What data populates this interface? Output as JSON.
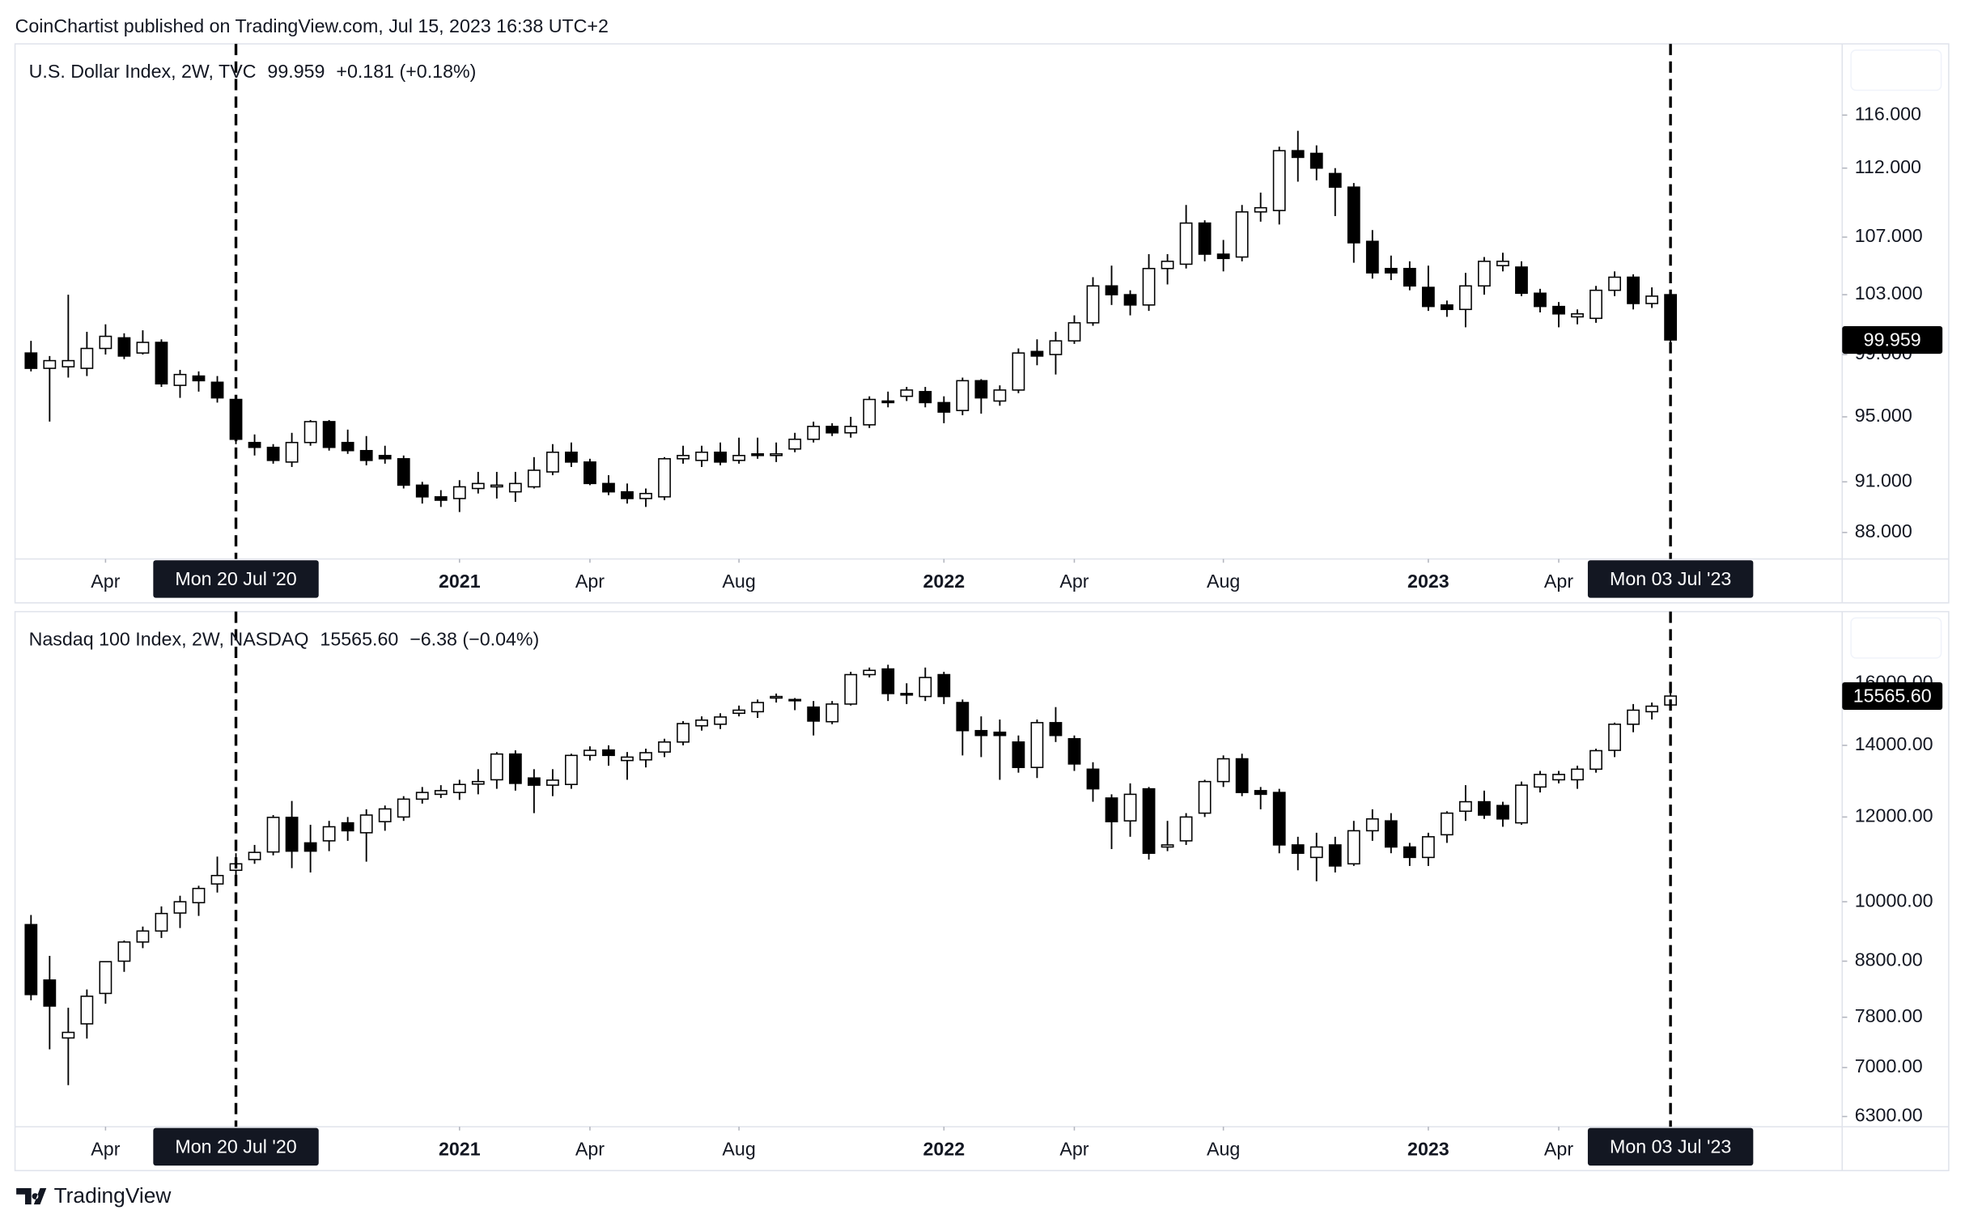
{
  "header": "CoinChartist published on TradingView.com, Jul 15, 2023 16:38 UTC+2",
  "footer": {
    "brand": "TradingView"
  },
  "chart_data": [
    {
      "type": "candlestick",
      "title": "U.S. Dollar Index, 2W, TVC",
      "last": 99.959,
      "last_label": "99.959",
      "change": "+0.181 (+0.18%)",
      "log": true,
      "x": [
        "2020-02-17",
        "2020-03-02",
        "2020-03-16",
        "2020-03-30",
        "2020-04-13",
        "2020-04-27",
        "2020-05-11",
        "2020-05-25",
        "2020-06-08",
        "2020-06-22",
        "2020-07-06",
        "2020-07-20",
        "2020-08-03",
        "2020-08-17",
        "2020-08-31",
        "2020-09-14",
        "2020-09-28",
        "2020-10-12",
        "2020-10-26",
        "2020-11-09",
        "2020-11-23",
        "2020-12-07",
        "2020-12-21",
        "2021-01-04",
        "2021-01-18",
        "2021-02-01",
        "2021-02-15",
        "2021-03-01",
        "2021-03-15",
        "2021-03-29",
        "2021-04-12",
        "2021-04-26",
        "2021-05-10",
        "2021-05-24",
        "2021-06-07",
        "2021-06-21",
        "2021-07-05",
        "2021-07-19",
        "2021-08-02",
        "2021-08-16",
        "2021-08-30",
        "2021-09-13",
        "2021-09-27",
        "2021-10-11",
        "2021-10-25",
        "2021-11-08",
        "2021-11-22",
        "2021-12-06",
        "2021-12-20",
        "2022-01-03",
        "2022-01-17",
        "2022-01-31",
        "2022-02-14",
        "2022-02-28",
        "2022-03-14",
        "2022-03-28",
        "2022-04-11",
        "2022-04-25",
        "2022-05-09",
        "2022-05-23",
        "2022-06-06",
        "2022-06-20",
        "2022-07-04",
        "2022-07-18",
        "2022-08-01",
        "2022-08-15",
        "2022-08-29",
        "2022-09-12",
        "2022-09-26",
        "2022-10-10",
        "2022-10-24",
        "2022-11-07",
        "2022-11-21",
        "2022-12-05",
        "2022-12-19",
        "2023-01-02",
        "2023-01-16",
        "2023-01-30",
        "2023-02-13",
        "2023-02-27",
        "2023-03-13",
        "2023-03-27",
        "2023-04-10",
        "2023-04-24",
        "2023-05-08",
        "2023-05-22",
        "2023-06-05",
        "2023-06-19",
        "2023-07-03"
      ],
      "open": [
        99.1,
        98.1,
        98.2,
        98.1,
        99.4,
        100.1,
        99.1,
        99.8,
        97.0,
        97.6,
        97.2,
        96.1,
        93.4,
        93.1,
        92.2,
        93.4,
        94.7,
        93.4,
        92.9,
        92.6,
        92.4,
        90.8,
        90.1,
        90.0,
        90.6,
        90.7,
        90.4,
        90.7,
        91.6,
        92.8,
        92.2,
        90.9,
        90.4,
        90.0,
        90.1,
        92.4,
        92.3,
        92.8,
        92.3,
        92.7,
        92.6,
        93.0,
        93.6,
        94.4,
        94.0,
        94.5,
        96.0,
        96.3,
        96.6,
        95.9,
        95.4,
        97.3,
        96.0,
        96.7,
        99.2,
        99.0,
        99.9,
        101.1,
        103.6,
        103.0,
        102.3,
        104.8,
        105.1,
        108.0,
        105.8,
        105.6,
        108.8,
        108.9,
        113.3,
        113.1,
        111.6,
        110.6,
        106.7,
        104.8,
        104.8,
        103.5,
        102.3,
        102.0,
        103.6,
        105.0,
        104.9,
        103.1,
        102.2,
        101.5,
        101.4,
        103.3,
        104.2,
        102.4,
        103.0
      ],
      "high": [
        99.9,
        98.9,
        103.0,
        100.5,
        101.0,
        100.4,
        100.6,
        100.0,
        98.0,
        97.9,
        97.6,
        96.3,
        93.9,
        93.3,
        94.0,
        94.8,
        94.8,
        94.2,
        93.8,
        93.2,
        92.6,
        91.0,
        90.5,
        91.1,
        91.6,
        91.6,
        91.6,
        92.5,
        93.3,
        93.4,
        92.4,
        91.4,
        90.9,
        90.6,
        92.5,
        93.2,
        93.2,
        93.4,
        93.7,
        93.7,
        93.4,
        94.0,
        94.7,
        94.6,
        95.0,
        96.3,
        96.6,
        96.9,
        96.9,
        96.3,
        97.5,
        97.4,
        97.0,
        99.4,
        100.0,
        100.5,
        101.6,
        104.2,
        105.0,
        103.3,
        105.8,
        105.8,
        109.3,
        108.2,
        106.8,
        109.3,
        110.2,
        113.6,
        114.8,
        113.7,
        112.0,
        110.9,
        107.5,
        105.7,
        105.3,
        105.0,
        102.6,
        104.5,
        105.6,
        105.9,
        105.3,
        103.4,
        102.5,
        102.0,
        103.6,
        104.6,
        104.4,
        103.5,
        103.3
      ],
      "low": [
        97.9,
        94.7,
        97.5,
        97.6,
        99.0,
        98.7,
        99.0,
        96.9,
        96.2,
        96.6,
        95.9,
        93.3,
        92.6,
        92.1,
        91.9,
        93.2,
        92.9,
        92.7,
        92.0,
        92.1,
        90.6,
        89.7,
        89.5,
        89.2,
        90.3,
        90.0,
        89.8,
        90.6,
        91.4,
        91.9,
        90.8,
        90.2,
        89.7,
        89.5,
        89.9,
        92.1,
        91.9,
        92.0,
        92.1,
        92.4,
        92.2,
        92.8,
        93.4,
        93.8,
        93.7,
        94.3,
        95.6,
        96.0,
        95.6,
        94.6,
        95.1,
        95.2,
        95.7,
        96.5,
        98.3,
        97.7,
        99.7,
        100.9,
        102.3,
        101.6,
        101.9,
        103.7,
        104.8,
        105.3,
        104.6,
        105.3,
        108.1,
        107.9,
        111.0,
        111.1,
        108.5,
        105.2,
        104.1,
        104.0,
        103.3,
        101.9,
        101.5,
        100.8,
        103.0,
        104.6,
        102.9,
        101.8,
        100.8,
        101.0,
        101.1,
        102.9,
        102.0,
        102.1,
        99.6
      ],
      "close": [
        98.1,
        98.6,
        98.6,
        99.4,
        100.2,
        98.9,
        99.8,
        97.1,
        97.7,
        97.3,
        96.2,
        93.6,
        93.1,
        92.3,
        93.4,
        94.7,
        93.1,
        92.9,
        92.3,
        92.4,
        90.8,
        90.1,
        89.9,
        90.7,
        90.9,
        90.8,
        90.9,
        91.7,
        92.8,
        92.2,
        90.9,
        90.4,
        90.0,
        90.3,
        92.4,
        92.6,
        92.8,
        92.2,
        92.6,
        92.6,
        92.7,
        93.6,
        94.4,
        94.0,
        94.4,
        96.1,
        95.9,
        96.7,
        95.9,
        95.3,
        97.3,
        96.2,
        96.7,
        99.1,
        98.9,
        99.9,
        101.1,
        103.6,
        103.0,
        102.3,
        104.8,
        105.3,
        108.0,
        105.8,
        105.5,
        108.8,
        109.1,
        113.3,
        112.8,
        112.0,
        110.6,
        106.6,
        104.5,
        104.5,
        103.6,
        102.2,
        102.0,
        103.6,
        105.3,
        105.3,
        103.1,
        102.2,
        101.7,
        101.7,
        103.3,
        104.2,
        102.4,
        102.9,
        99.959
      ],
      "xlim": [
        "2020-02-05",
        "2023-11-09"
      ],
      "xticks": [
        {
          "value": "2020-04-13",
          "label": "Apr"
        },
        {
          "value": "2021-01-04",
          "label": "2021"
        },
        {
          "value": "2021-04-12",
          "label": "Apr"
        },
        {
          "value": "2021-08-02",
          "label": "Aug"
        },
        {
          "value": "2022-01-03",
          "label": "2022"
        },
        {
          "value": "2022-04-11",
          "label": "Apr"
        },
        {
          "value": "2022-08-01",
          "label": "Aug"
        },
        {
          "value": "2023-01-02",
          "label": "2023"
        },
        {
          "value": "2023-04-10",
          "label": "Apr"
        }
      ],
      "markers": [
        {
          "x": "2020-07-20",
          "label": "Mon 20 Jul '20"
        },
        {
          "x": "2023-07-03",
          "label": "Mon 03 Jul '23"
        }
      ],
      "ylim": [
        86.47,
        121.6
      ],
      "yticks": [
        {
          "value": 116,
          "label": "116.000"
        },
        {
          "value": 112,
          "label": "112.000"
        },
        {
          "value": 107,
          "label": "107.000"
        },
        {
          "value": 103,
          "label": "103.000"
        },
        {
          "value": 99,
          "label": "99.000"
        },
        {
          "value": 95,
          "label": "95.000"
        },
        {
          "value": 91,
          "label": "91.000"
        },
        {
          "value": 88,
          "label": "88.000"
        }
      ]
    },
    {
      "type": "candlestick",
      "title": "Nasdaq 100 Index, 2W, NASDAQ",
      "last": 15565.6,
      "last_label": "15565.60",
      "change": "−6.38 (−0.04%)",
      "log": true,
      "x": [
        "2020-02-17",
        "2020-03-02",
        "2020-03-16",
        "2020-03-30",
        "2020-04-13",
        "2020-04-27",
        "2020-05-11",
        "2020-05-25",
        "2020-06-08",
        "2020-06-22",
        "2020-07-06",
        "2020-07-20",
        "2020-08-03",
        "2020-08-17",
        "2020-08-31",
        "2020-09-14",
        "2020-09-28",
        "2020-10-12",
        "2020-10-26",
        "2020-11-09",
        "2020-11-23",
        "2020-12-07",
        "2020-12-21",
        "2021-01-04",
        "2021-01-18",
        "2021-02-01",
        "2021-02-15",
        "2021-03-01",
        "2021-03-15",
        "2021-03-29",
        "2021-04-12",
        "2021-04-26",
        "2021-05-10",
        "2021-05-24",
        "2021-06-07",
        "2021-06-21",
        "2021-07-05",
        "2021-07-19",
        "2021-08-02",
        "2021-08-16",
        "2021-08-30",
        "2021-09-13",
        "2021-09-27",
        "2021-10-11",
        "2021-10-25",
        "2021-11-08",
        "2021-11-22",
        "2021-12-06",
        "2021-12-20",
        "2022-01-03",
        "2022-01-17",
        "2022-01-31",
        "2022-02-14",
        "2022-02-28",
        "2022-03-14",
        "2022-03-28",
        "2022-04-11",
        "2022-04-25",
        "2022-05-09",
        "2022-05-23",
        "2022-06-06",
        "2022-06-20",
        "2022-07-04",
        "2022-07-18",
        "2022-08-01",
        "2022-08-15",
        "2022-08-29",
        "2022-09-12",
        "2022-09-26",
        "2022-10-10",
        "2022-10-24",
        "2022-11-07",
        "2022-11-21",
        "2022-12-05",
        "2022-12-19",
        "2023-01-02",
        "2023-01-16",
        "2023-01-30",
        "2023-02-13",
        "2023-02-27",
        "2023-03-13",
        "2023-03-27",
        "2023-04-10",
        "2023-04-24",
        "2023-05-08",
        "2023-05-22",
        "2023-06-05",
        "2023-06-19",
        "2023-07-03"
      ],
      "open": [
        9520,
        8450,
        7460,
        7690,
        8210,
        8800,
        9170,
        9390,
        9760,
        9980,
        10390,
        10700,
        10950,
        11130,
        11990,
        11350,
        11400,
        11850,
        11600,
        11880,
        12000,
        12470,
        12600,
        12650,
        12880,
        13000,
        13740,
        13050,
        12850,
        12870,
        13700,
        13860,
        13550,
        13570,
        13800,
        14100,
        14600,
        14650,
        15000,
        15050,
        15500,
        15450,
        15200,
        14730,
        15300,
        16300,
        16500,
        15650,
        15550,
        16300,
        15350,
        14450,
        14400,
        14100,
        13350,
        14700,
        14200,
        13300,
        12500,
        11900,
        12750,
        11250,
        11400,
        12100,
        12950,
        13600,
        12700,
        12650,
        11300,
        11000,
        11300,
        10850,
        11650,
        11900,
        11250,
        11000,
        11550,
        12150,
        12400,
        12300,
        11850,
        12800,
        13000,
        13000,
        13300,
        13850,
        14650,
        15050,
        15270
      ],
      "high": [
        9720,
        8900,
        7960,
        8280,
        8800,
        9200,
        9480,
        9900,
        10130,
        10350,
        11020,
        11100,
        11300,
        12050,
        12420,
        11800,
        11900,
        12000,
        12200,
        12300,
        12550,
        12800,
        12850,
        13000,
        13300,
        13800,
        13850,
        13300,
        13300,
        13750,
        13970,
        14000,
        13800,
        13900,
        14200,
        14750,
        14900,
        15000,
        15250,
        15450,
        15650,
        15500,
        15400,
        15400,
        16400,
        16550,
        16650,
        16000,
        16550,
        16400,
        15450,
        14900,
        14800,
        14300,
        14800,
        15200,
        14300,
        13500,
        12600,
        12900,
        12800,
        11900,
        12100,
        13000,
        13700,
        13750,
        12800,
        12750,
        11500,
        11600,
        11500,
        11900,
        12200,
        12100,
        11350,
        11600,
        12150,
        12850,
        12700,
        12400,
        12950,
        13250,
        13250,
        13400,
        13900,
        14700,
        15300,
        15350,
        15700
      ],
      "low": [
        8090,
        7280,
        6740,
        7450,
        8030,
        8600,
        9050,
        9250,
        9450,
        9700,
        10200,
        10470,
        10850,
        11050,
        10750,
        10650,
        11150,
        11400,
        10900,
        11650,
        11900,
        12350,
        12500,
        12450,
        12600,
        12750,
        12700,
        12100,
        12550,
        12750,
        13550,
        13400,
        13000,
        13350,
        13650,
        14000,
        14450,
        14500,
        14900,
        14850,
        15350,
        15100,
        14300,
        14650,
        15250,
        16200,
        15400,
        15300,
        15400,
        15300,
        13700,
        13650,
        13000,
        13200,
        13050,
        14100,
        13250,
        12400,
        11200,
        11500,
        10950,
        11150,
        11300,
        12000,
        12800,
        12550,
        12200,
        11100,
        10700,
        10450,
        10650,
        10800,
        11400,
        11100,
        10800,
        10800,
        11350,
        11900,
        11950,
        11750,
        11800,
        12650,
        12900,
        12750,
        13200,
        13650,
        14400,
        14800,
        15200
      ],
      "close": [
        8190,
        7990,
        7550,
        8160,
        8790,
        9170,
        9390,
        9750,
        10000,
        10290,
        10580,
        10850,
        11120,
        11990,
        11150,
        11150,
        11750,
        11650,
        12050,
        12210,
        12470,
        12650,
        12700,
        12870,
        12950,
        13740,
        12900,
        12850,
        12990,
        13700,
        13850,
        13700,
        13650,
        13780,
        14100,
        14670,
        14780,
        14880,
        15100,
        15350,
        15550,
        15430,
        14750,
        15300,
        16300,
        16450,
        15650,
        15600,
        16200,
        15550,
        14450,
        14300,
        14300,
        13350,
        14700,
        14300,
        13450,
        12750,
        11880,
        12600,
        11100,
        11300,
        12000,
        12950,
        13600,
        12650,
        12600,
        11300,
        11100,
        11250,
        10800,
        11650,
        11950,
        11250,
        11000,
        11500,
        12100,
        12400,
        12050,
        11950,
        12850,
        13150,
        13150,
        13300,
        13840,
        14650,
        15100,
        15230,
        15565.6
      ],
      "xlim": [
        "2020-02-05",
        "2023-11-09"
      ],
      "xticks": [
        {
          "value": "2020-04-13",
          "label": "Apr"
        },
        {
          "value": "2021-01-04",
          "label": "2021"
        },
        {
          "value": "2021-04-12",
          "label": "Apr"
        },
        {
          "value": "2021-08-02",
          "label": "Aug"
        },
        {
          "value": "2022-01-03",
          "label": "2022"
        },
        {
          "value": "2022-04-11",
          "label": "Apr"
        },
        {
          "value": "2022-08-01",
          "label": "Aug"
        },
        {
          "value": "2023-01-02",
          "label": "2023"
        },
        {
          "value": "2023-04-10",
          "label": "Apr"
        }
      ],
      "markers": [
        {
          "x": "2020-07-20",
          "label": "Mon 20 Jul '20"
        },
        {
          "x": "2023-07-03",
          "label": "Mon 03 Jul '23"
        }
      ],
      "ylim": [
        6163,
        18666
      ],
      "yticks": [
        {
          "value": 16000,
          "label": "16000.00"
        },
        {
          "value": 14000,
          "label": "14000.00"
        },
        {
          "value": 12000,
          "label": "12000.00"
        },
        {
          "value": 10000,
          "label": "10000.00"
        },
        {
          "value": 8800,
          "label": "8800.00"
        },
        {
          "value": 7800,
          "label": "7800.00"
        },
        {
          "value": 7000,
          "label": "7000.00"
        },
        {
          "value": 6300,
          "label": "6300.00"
        }
      ]
    }
  ]
}
